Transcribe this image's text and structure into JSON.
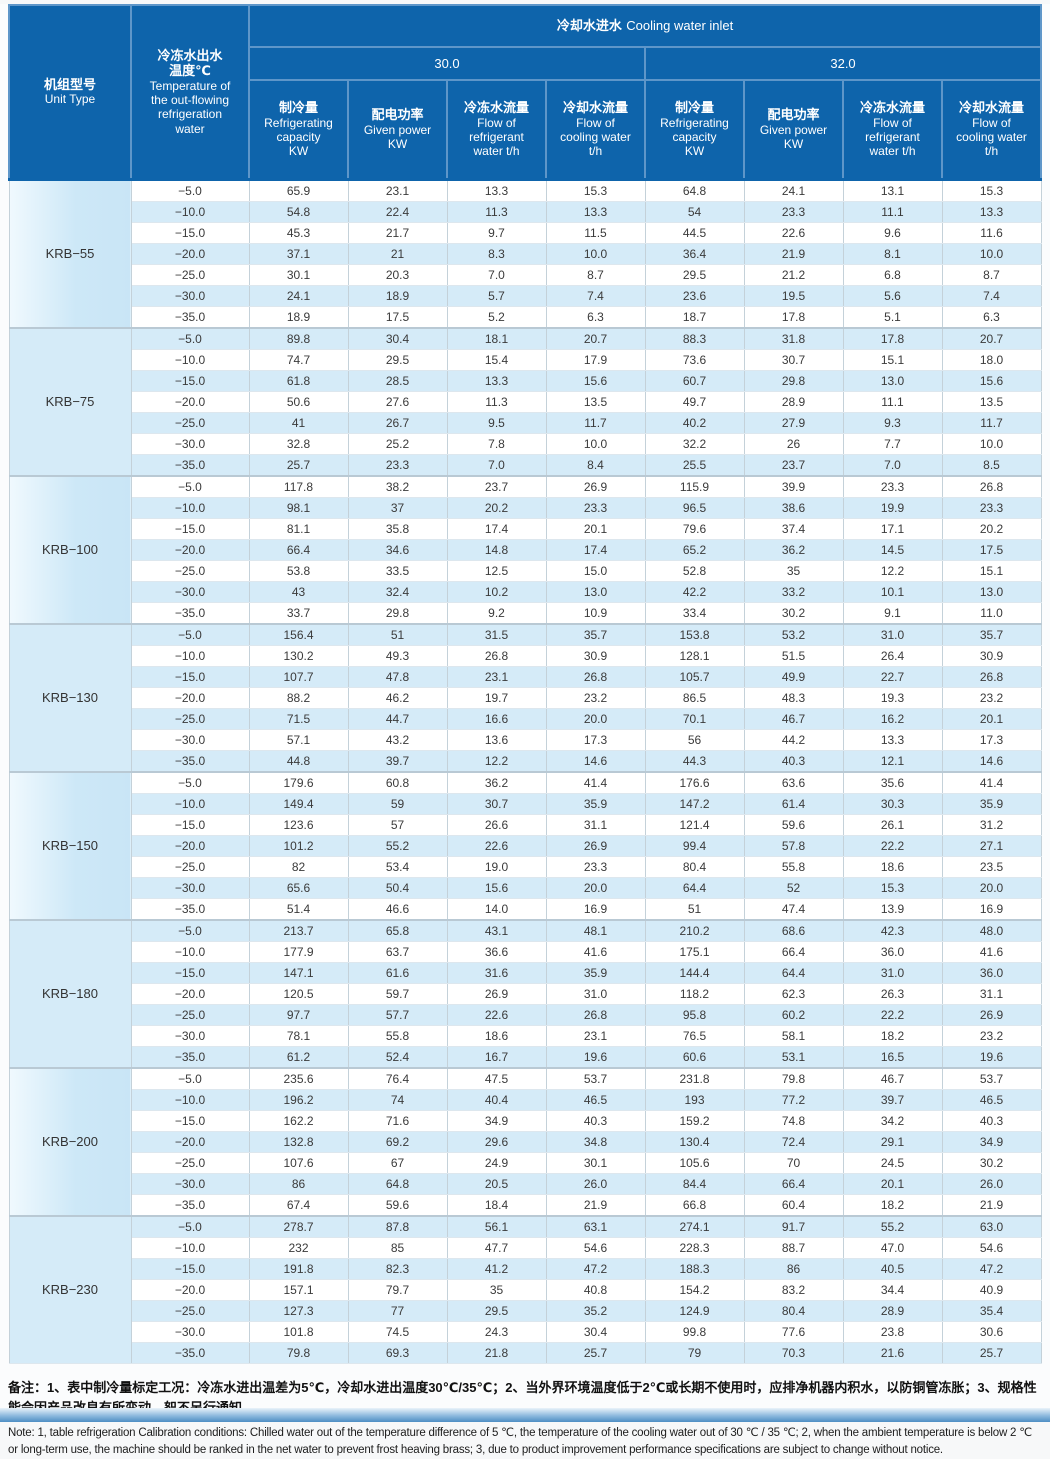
{
  "table": {
    "col1_title_zh": "机组型号",
    "col1_title_en": "Unit Type",
    "col2_title_zh": "冷冻水出水\n温度℃",
    "col2_title_en": "Temperature of\nthe out-flowing\nrefrigeration\nwater",
    "group_title_zh": "冷却水进水",
    "group_title_en": "Cooling water inlet",
    "subgroups": [
      "30.0",
      "32.0"
    ],
    "leaf_headers": [
      {
        "zh": "制冷量",
        "en": "Refrigerating\ncapacity\nKW"
      },
      {
        "zh": "配电功率",
        "en": "Given power\nKW"
      },
      {
        "zh": "冷冻水流量",
        "en": "Flow of\nrefrigerant\nwater t/h"
      },
      {
        "zh": "冷却水流量",
        "en": "Flow of\ncooling water\nt/h"
      }
    ],
    "blocks": [
      {
        "model": "KRB−55",
        "rows": [
          {
            "temp": "−5.0",
            "v": [
              "65.9",
              "23.1",
              "13.3",
              "15.3",
              "64.8",
              "24.1",
              "13.1",
              "15.3"
            ]
          },
          {
            "temp": "−10.0",
            "v": [
              "54.8",
              "22.4",
              "11.3",
              "13.3",
              "54",
              "23.3",
              "11.1",
              "13.3"
            ]
          },
          {
            "temp": "−15.0",
            "v": [
              "45.3",
              "21.7",
              "9.7",
              "11.5",
              "44.5",
              "22.6",
              "9.6",
              "11.6"
            ]
          },
          {
            "temp": "−20.0",
            "v": [
              "37.1",
              "21",
              "8.3",
              "10.0",
              "36.4",
              "21.9",
              "8.1",
              "10.0"
            ]
          },
          {
            "temp": "−25.0",
            "v": [
              "30.1",
              "20.3",
              "7.0",
              "8.7",
              "29.5",
              "21.2",
              "6.8",
              "8.7"
            ]
          },
          {
            "temp": "−30.0",
            "v": [
              "24.1",
              "18.9",
              "5.7",
              "7.4",
              "23.6",
              "19.5",
              "5.6",
              "7.4"
            ]
          },
          {
            "temp": "−35.0",
            "v": [
              "18.9",
              "17.5",
              "5.2",
              "6.3",
              "18.7",
              "17.8",
              "5.1",
              "6.3"
            ]
          }
        ]
      },
      {
        "model": "KRB−75",
        "rows": [
          {
            "temp": "−5.0",
            "v": [
              "89.8",
              "30.4",
              "18.1",
              "20.7",
              "88.3",
              "31.8",
              "17.8",
              "20.7"
            ]
          },
          {
            "temp": "−10.0",
            "v": [
              "74.7",
              "29.5",
              "15.4",
              "17.9",
              "73.6",
              "30.7",
              "15.1",
              "18.0"
            ]
          },
          {
            "temp": "−15.0",
            "v": [
              "61.8",
              "28.5",
              "13.3",
              "15.6",
              "60.7",
              "29.8",
              "13.0",
              "15.6"
            ]
          },
          {
            "temp": "−20.0",
            "v": [
              "50.6",
              "27.6",
              "11.3",
              "13.5",
              "49.7",
              "28.9",
              "11.1",
              "13.5"
            ]
          },
          {
            "temp": "−25.0",
            "v": [
              "41",
              "26.7",
              "9.5",
              "11.7",
              "40.2",
              "27.9",
              "9.3",
              "11.7"
            ]
          },
          {
            "temp": "−30.0",
            "v": [
              "32.8",
              "25.2",
              "7.8",
              "10.0",
              "32.2",
              "26",
              "7.7",
              "10.0"
            ]
          },
          {
            "temp": "−35.0",
            "v": [
              "25.7",
              "23.3",
              "7.0",
              "8.4",
              "25.5",
              "23.7",
              "7.0",
              "8.5"
            ]
          }
        ]
      },
      {
        "model": "KRB−100",
        "rows": [
          {
            "temp": "−5.0",
            "v": [
              "117.8",
              "38.2",
              "23.7",
              "26.9",
              "115.9",
              "39.9",
              "23.3",
              "26.8"
            ]
          },
          {
            "temp": "−10.0",
            "v": [
              "98.1",
              "37",
              "20.2",
              "23.3",
              "96.5",
              "38.6",
              "19.9",
              "23.3"
            ]
          },
          {
            "temp": "−15.0",
            "v": [
              "81.1",
              "35.8",
              "17.4",
              "20.1",
              "79.6",
              "37.4",
              "17.1",
              "20.2"
            ]
          },
          {
            "temp": "−20.0",
            "v": [
              "66.4",
              "34.6",
              "14.8",
              "17.4",
              "65.2",
              "36.2",
              "14.5",
              "17.5"
            ]
          },
          {
            "temp": "−25.0",
            "v": [
              "53.8",
              "33.5",
              "12.5",
              "15.0",
              "52.8",
              "35",
              "12.2",
              "15.1"
            ]
          },
          {
            "temp": "−30.0",
            "v": [
              "43",
              "32.4",
              "10.2",
              "13.0",
              "42.2",
              "33.2",
              "10.1",
              "13.0"
            ]
          },
          {
            "temp": "−35.0",
            "v": [
              "33.7",
              "29.8",
              "9.2",
              "10.9",
              "33.4",
              "30.2",
              "9.1",
              "11.0"
            ]
          }
        ]
      },
      {
        "model": "KRB−130",
        "rows": [
          {
            "temp": "−5.0",
            "v": [
              "156.4",
              "51",
              "31.5",
              "35.7",
              "153.8",
              "53.2",
              "31.0",
              "35.7"
            ]
          },
          {
            "temp": "−10.0",
            "v": [
              "130.2",
              "49.3",
              "26.8",
              "30.9",
              "128.1",
              "51.5",
              "26.4",
              "30.9"
            ]
          },
          {
            "temp": "−15.0",
            "v": [
              "107.7",
              "47.8",
              "23.1",
              "26.8",
              "105.7",
              "49.9",
              "22.7",
              "26.8"
            ]
          },
          {
            "temp": "−20.0",
            "v": [
              "88.2",
              "46.2",
              "19.7",
              "23.2",
              "86.5",
              "48.3",
              "19.3",
              "23.2"
            ]
          },
          {
            "temp": "−25.0",
            "v": [
              "71.5",
              "44.7",
              "16.6",
              "20.0",
              "70.1",
              "46.7",
              "16.2",
              "20.1"
            ]
          },
          {
            "temp": "−30.0",
            "v": [
              "57.1",
              "43.2",
              "13.6",
              "17.3",
              "56",
              "44.2",
              "13.3",
              "17.3"
            ]
          },
          {
            "temp": "−35.0",
            "v": [
              "44.8",
              "39.7",
              "12.2",
              "14.6",
              "44.3",
              "40.3",
              "12.1",
              "14.6"
            ]
          }
        ]
      },
      {
        "model": "KRB−150",
        "rows": [
          {
            "temp": "−5.0",
            "v": [
              "179.6",
              "60.8",
              "36.2",
              "41.4",
              "176.6",
              "63.6",
              "35.6",
              "41.4"
            ]
          },
          {
            "temp": "−10.0",
            "v": [
              "149.4",
              "59",
              "30.7",
              "35.9",
              "147.2",
              "61.4",
              "30.3",
              "35.9"
            ]
          },
          {
            "temp": "−15.0",
            "v": [
              "123.6",
              "57",
              "26.6",
              "31.1",
              "121.4",
              "59.6",
              "26.1",
              "31.2"
            ]
          },
          {
            "temp": "−20.0",
            "v": [
              "101.2",
              "55.2",
              "22.6",
              "26.9",
              "99.4",
              "57.8",
              "22.2",
              "27.1"
            ]
          },
          {
            "temp": "−25.0",
            "v": [
              "82",
              "53.4",
              "19.0",
              "23.3",
              "80.4",
              "55.8",
              "18.6",
              "23.5"
            ]
          },
          {
            "temp": "−30.0",
            "v": [
              "65.6",
              "50.4",
              "15.6",
              "20.0",
              "64.4",
              "52",
              "15.3",
              "20.0"
            ]
          },
          {
            "temp": "−35.0",
            "v": [
              "51.4",
              "46.6",
              "14.0",
              "16.9",
              "51",
              "47.4",
              "13.9",
              "16.9"
            ]
          }
        ]
      },
      {
        "model": "KRB−180",
        "rows": [
          {
            "temp": "−5.0",
            "v": [
              "213.7",
              "65.8",
              "43.1",
              "48.1",
              "210.2",
              "68.6",
              "42.3",
              "48.0"
            ]
          },
          {
            "temp": "−10.0",
            "v": [
              "177.9",
              "63.7",
              "36.6",
              "41.6",
              "175.1",
              "66.4",
              "36.0",
              "41.6"
            ]
          },
          {
            "temp": "−15.0",
            "v": [
              "147.1",
              "61.6",
              "31.6",
              "35.9",
              "144.4",
              "64.4",
              "31.0",
              "36.0"
            ]
          },
          {
            "temp": "−20.0",
            "v": [
              "120.5",
              "59.7",
              "26.9",
              "31.0",
              "118.2",
              "62.3",
              "26.3",
              "31.1"
            ]
          },
          {
            "temp": "−25.0",
            "v": [
              "97.7",
              "57.7",
              "22.6",
              "26.8",
              "95.8",
              "60.2",
              "22.2",
              "26.9"
            ]
          },
          {
            "temp": "−30.0",
            "v": [
              "78.1",
              "55.8",
              "18.6",
              "23.1",
              "76.5",
              "58.1",
              "18.2",
              "23.2"
            ]
          },
          {
            "temp": "−35.0",
            "v": [
              "61.2",
              "52.4",
              "16.7",
              "19.6",
              "60.6",
              "53.1",
              "16.5",
              "19.6"
            ]
          }
        ]
      },
      {
        "model": "KRB−200",
        "rows": [
          {
            "temp": "−5.0",
            "v": [
              "235.6",
              "76.4",
              "47.5",
              "53.7",
              "231.8",
              "79.8",
              "46.7",
              "53.7"
            ]
          },
          {
            "temp": "−10.0",
            "v": [
              "196.2",
              "74",
              "40.4",
              "46.5",
              "193",
              "77.2",
              "39.7",
              "46.5"
            ]
          },
          {
            "temp": "−15.0",
            "v": [
              "162.2",
              "71.6",
              "34.9",
              "40.3",
              "159.2",
              "74.8",
              "34.2",
              "40.3"
            ]
          },
          {
            "temp": "−20.0",
            "v": [
              "132.8",
              "69.2",
              "29.6",
              "34.8",
              "130.4",
              "72.4",
              "29.1",
              "34.9"
            ]
          },
          {
            "temp": "−25.0",
            "v": [
              "107.6",
              "67",
              "24.9",
              "30.1",
              "105.6",
              "70",
              "24.5",
              "30.2"
            ]
          },
          {
            "temp": "−30.0",
            "v": [
              "86",
              "64.8",
              "20.5",
              "26.0",
              "84.4",
              "66.4",
              "20.1",
              "26.0"
            ]
          },
          {
            "temp": "−35.0",
            "v": [
              "67.4",
              "59.6",
              "18.4",
              "21.9",
              "66.8",
              "60.4",
              "18.2",
              "21.9"
            ]
          }
        ]
      },
      {
        "model": "KRB−230",
        "rows": [
          {
            "temp": "−5.0",
            "v": [
              "278.7",
              "87.8",
              "56.1",
              "63.1",
              "274.1",
              "91.7",
              "55.2",
              "63.0"
            ]
          },
          {
            "temp": "−10.0",
            "v": [
              "232",
              "85",
              "47.7",
              "54.6",
              "228.3",
              "88.7",
              "47.0",
              "54.6"
            ]
          },
          {
            "temp": "−15.0",
            "v": [
              "191.8",
              "82.3",
              "41.2",
              "47.2",
              "188.3",
              "86",
              "40.5",
              "47.2"
            ]
          },
          {
            "temp": "−20.0",
            "v": [
              "157.1",
              "79.7",
              "35",
              "40.8",
              "154.2",
              "83.2",
              "34.4",
              "40.9"
            ]
          },
          {
            "temp": "−25.0",
            "v": [
              "127.3",
              "77",
              "29.5",
              "35.2",
              "124.9",
              "80.4",
              "28.9",
              "35.4"
            ]
          },
          {
            "temp": "−30.0",
            "v": [
              "101.8",
              "74.5",
              "24.3",
              "30.4",
              "99.8",
              "77.6",
              "23.8",
              "30.6"
            ]
          },
          {
            "temp": "−35.0",
            "v": [
              "79.8",
              "69.3",
              "21.8",
              "25.7",
              "79",
              "70.3",
              "21.6",
              "25.7"
            ]
          }
        ]
      }
    ]
  },
  "notes": {
    "zh": "备注：1、表中制冷量标定工况：冷冻水进出温差为5℃，冷却水进出温度30℃/35℃；2、当外界环境温度低于2℃或长期不使用时，应排净机器内积水，以防铜管冻胀；3、规格性能会因产品改良有所变动，恕不另行通知。",
    "en": "Note: 1, table refrigeration Calibration conditions: Chilled water out of the temperature difference of 5 ℃, the temperature of the cooling water out of 30 ℃ / 35 ℃; 2, when the  ambient temperature is below 2 ℃ or long-term use, the machine should be ranked in the net water to prevent frost heaving brass; 3, due to product improvement performance specifications are subject to change without notice."
  },
  "colors": {
    "header_blue": "#0e64ab",
    "header_border": "#5e96c9",
    "stripe_blue": "#d5ebf8",
    "model_col_blue": "#cde8f7"
  }
}
